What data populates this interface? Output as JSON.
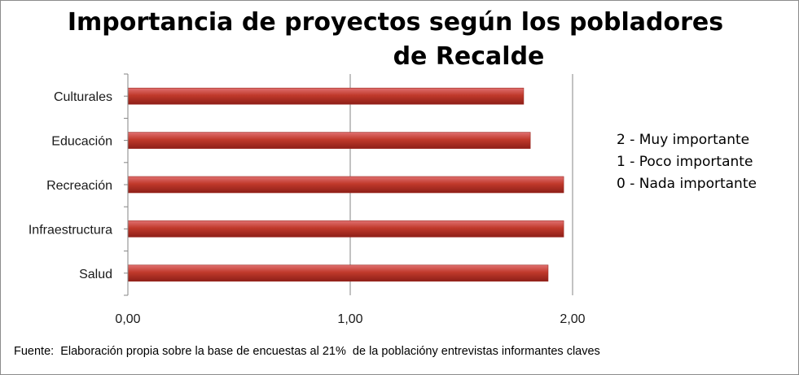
{
  "chart_data": {
    "type": "bar",
    "orientation": "horizontal",
    "title_lines": [
      "Importancia de proyectos según los pobladores",
      "de Recalde"
    ],
    "categories": [
      "Culturales",
      "Educación",
      "Recreación",
      "Infraestructura",
      "Salud"
    ],
    "values": [
      1.78,
      1.81,
      1.96,
      1.96,
      1.89
    ],
    "xlim": [
      0,
      2
    ],
    "xticks": [
      0,
      1,
      2
    ],
    "xtick_labels": [
      "0,00",
      "1,00",
      "2,00"
    ],
    "grid": "vertical",
    "bar_color": "#c0392b",
    "legend_notes": [
      "2 - Muy importante",
      "1 - Poco importante",
      "0 - Nada importante"
    ],
    "source": "Fuente:  Elaboración propia sobre la base de encuestas al 21%  de la poblacióny entrevistas informantes claves"
  }
}
